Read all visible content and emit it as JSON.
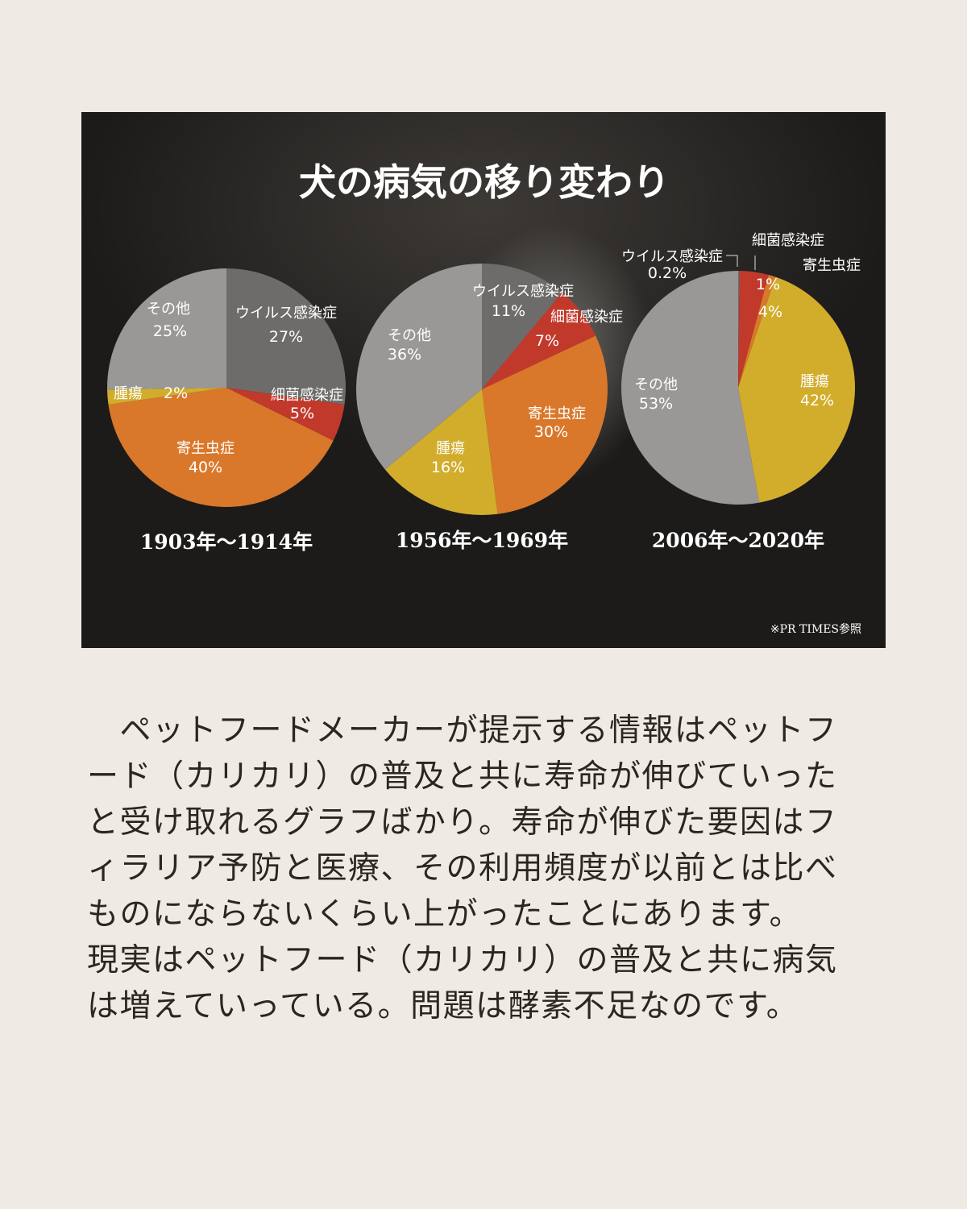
{
  "title": "犬の病気の移り変わり",
  "source_note": "※PR TIMES参照",
  "chart_data": [
    {
      "type": "pie",
      "period_label": "1903年〜1914年",
      "slices": [
        {
          "name": "ウイルス感染症",
          "value": 27,
          "label": "27%",
          "color": "#6e6c6a"
        },
        {
          "name": "細菌感染症",
          "value": 5,
          "label": "5%",
          "color": "#c0392b"
        },
        {
          "name": "寄生虫症",
          "value": 40,
          "label": "40%",
          "color": "#d9782a"
        },
        {
          "name": "腫瘍",
          "value": 2,
          "label": "2%",
          "color": "#d2ad2c"
        },
        {
          "name": "その他",
          "value": 25,
          "label": "25%",
          "color": "#9a9896"
        }
      ]
    },
    {
      "type": "pie",
      "period_label": "1956年〜1969年",
      "slices": [
        {
          "name": "ウイルス感染症",
          "value": 11,
          "label": "11%",
          "color": "#6e6c6a"
        },
        {
          "name": "細菌感染症",
          "value": 7,
          "label": "7%",
          "color": "#c0392b"
        },
        {
          "name": "寄生虫症",
          "value": 30,
          "label": "30%",
          "color": "#d9782a"
        },
        {
          "name": "腫瘍",
          "value": 16,
          "label": "16%",
          "color": "#d2ad2c"
        },
        {
          "name": "その他",
          "value": 36,
          "label": "36%",
          "color": "#9a9896"
        }
      ]
    },
    {
      "type": "pie",
      "period_label": "2006年〜2020年",
      "slices": [
        {
          "name": "ウイルス感染症",
          "value": 0.2,
          "label": "0.2%",
          "color": "#6e6c6a"
        },
        {
          "name": "細菌感染症",
          "value": 4,
          "label": "4%",
          "color": "#c0392b"
        },
        {
          "name": "寄生虫症",
          "value": 1,
          "label": "1%",
          "color": "#d9782a"
        },
        {
          "name": "腫瘍",
          "value": 42,
          "label": "42%",
          "color": "#d2ad2c"
        },
        {
          "name": "その他",
          "value": 53,
          "label": "53%",
          "color": "#9a9896"
        }
      ]
    }
  ],
  "caption_lines": [
    "　ペットフードメーカーが提示する情報はペットフ",
    "ード（カリカリ）の普及と共に寿命が伸びていった",
    "と受け取れるグラフばかり。寿命が伸びた要因はフ",
    "ィラリア予防と医療、その利用頻度が以前とは比べ",
    "ものにならないくらい上がったことにあります。",
    "現実はペットフード（カリカリ）の普及と共に病気",
    "は増えていっている。問題は酵素不足なのです。"
  ]
}
